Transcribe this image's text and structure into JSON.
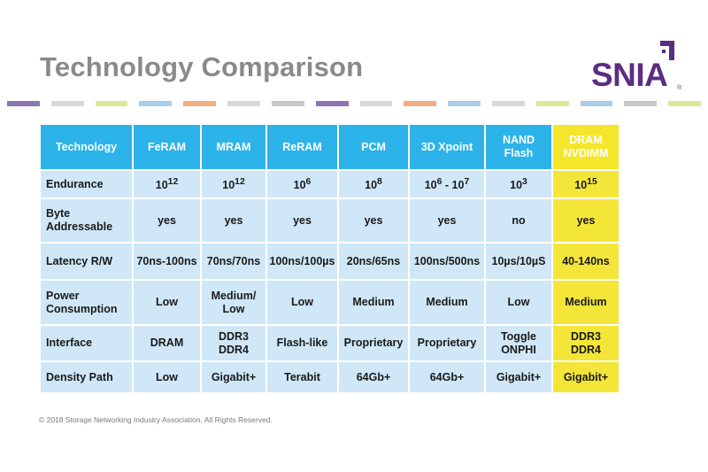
{
  "slide": {
    "title": "Technology Comparison",
    "logo_text": "SNIA",
    "logo_reg": "®",
    "footer": "© 2018 Storage Networking Industry Association. All Rights Reserved."
  },
  "colors": {
    "title": "#8a8a8a",
    "header_bg": "#2bb3ea",
    "cell_bg": "#cfe7f7",
    "highlight": "#f4e62a",
    "logo": "#5c2d83",
    "stripe": [
      "#8e74b2",
      "#d8d8d8",
      "#dbe89a",
      "#abcde8",
      "#f2ad83",
      "#d8d8d8",
      "#c7c7c7",
      "#8e74b2",
      "#d8d8d8",
      "#f2ad83",
      "#abcde8",
      "#d8d8d8",
      "#dbe89a",
      "#abcde8",
      "#c7c7c7",
      "#dbe89a"
    ]
  },
  "table": {
    "headers": [
      "Technology",
      "FeRAM",
      "MRAM",
      "ReRAM",
      "PCM",
      "3D Xpoint",
      "NAND Flash",
      "DRAM NVDIMM"
    ],
    "rows": [
      {
        "label": "Endurance",
        "cells": [
          {
            "base": "10",
            "exp": "12"
          },
          {
            "base": "10",
            "exp": "12"
          },
          {
            "base": "10",
            "exp": "6"
          },
          {
            "base": "10",
            "exp": "8"
          },
          {
            "range": [
              "10",
              "6",
              "10",
              "7"
            ]
          },
          {
            "base": "10",
            "exp": "3"
          },
          {
            "base": "10",
            "exp": "15"
          }
        ]
      },
      {
        "label": "Byte Addressable",
        "cells": [
          "yes",
          "yes",
          "yes",
          "yes",
          "yes",
          "no",
          "yes"
        ]
      },
      {
        "label": "Latency R/W",
        "cells": [
          "70ns-100ns",
          "70ns/70ns",
          "100ns/100µs",
          "20ns/65ns",
          "100ns/500ns",
          "10µs/10µS",
          "40-140ns"
        ]
      },
      {
        "label": "Power Consumption",
        "cells": [
          "Low",
          "Medium/ Low",
          "Low",
          "Medium",
          "Medium",
          "Low",
          "Medium"
        ]
      },
      {
        "label": "Interface",
        "cells": [
          "DRAM",
          "DDR3 DDR4",
          "Flash-like",
          "Proprietary",
          "Proprietary",
          "Toggle ONPHI",
          "DDR3 DDR4"
        ]
      },
      {
        "label": "Density Path",
        "cells": [
          "Low",
          "Gigabit+",
          "Terabit",
          "64Gb+",
          "64Gb+",
          "Gigabit+",
          "Gigabit+"
        ]
      }
    ]
  }
}
